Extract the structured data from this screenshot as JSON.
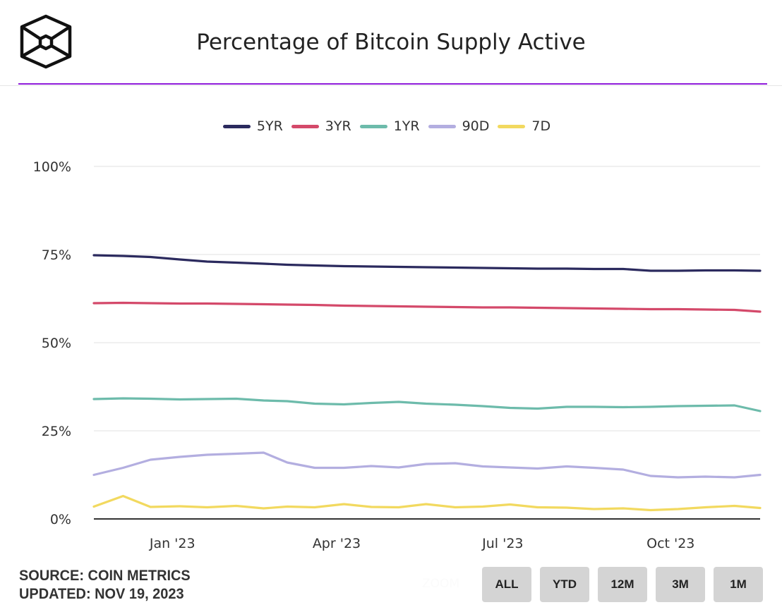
{
  "header": {
    "title": "Percentage of Bitcoin Supply Active",
    "logo": "cube-logo",
    "accent_color": "#8e1bd9"
  },
  "footer": {
    "source": "SOURCE: COIN METRICS",
    "updated": "UPDATED: NOV 19, 2023",
    "zoom_label": "ZOOM",
    "range_buttons": [
      "ALL",
      "YTD",
      "12M",
      "3M",
      "1M"
    ]
  },
  "chart_data": {
    "type": "line",
    "title": "Percentage of Bitcoin Supply Active",
    "xlabel": "",
    "ylabel": "",
    "ylim": [
      0,
      100
    ],
    "yticks": [
      "0%",
      "25%",
      "50%",
      "75%",
      "100%"
    ],
    "ytick_values": [
      0,
      25,
      50,
      75,
      100
    ],
    "xticks": [
      "Jan '23",
      "Apr '23",
      "Jul '23",
      "Oct '23"
    ],
    "xtick_dates": [
      "2023-01-01",
      "2023-04-01",
      "2023-07-01",
      "2023-10-01"
    ],
    "xlim": [
      "2022-11-19",
      "2023-11-19"
    ],
    "grid": true,
    "legend_position": "top-center",
    "x": [
      "2022-11-19",
      "2022-12-05",
      "2022-12-20",
      "2023-01-05",
      "2023-01-20",
      "2023-02-05",
      "2023-02-20",
      "2023-03-05",
      "2023-03-20",
      "2023-04-05",
      "2023-04-20",
      "2023-05-05",
      "2023-05-20",
      "2023-06-05",
      "2023-06-20",
      "2023-07-05",
      "2023-07-20",
      "2023-08-05",
      "2023-08-20",
      "2023-09-05",
      "2023-09-20",
      "2023-10-05",
      "2023-10-20",
      "2023-11-05",
      "2023-11-19"
    ],
    "series": [
      {
        "name": "5YR",
        "color": "#2b2a5e",
        "values": [
          74.8,
          74.6,
          74.3,
          73.6,
          73.0,
          72.7,
          72.4,
          72.1,
          71.9,
          71.7,
          71.6,
          71.5,
          71.4,
          71.3,
          71.2,
          71.1,
          71.0,
          71.0,
          70.9,
          70.9,
          70.4,
          70.4,
          70.5,
          70.5,
          70.4
        ]
      },
      {
        "name": "3YR",
        "color": "#d4496a",
        "values": [
          61.2,
          61.3,
          61.2,
          61.1,
          61.1,
          61.0,
          60.9,
          60.8,
          60.7,
          60.5,
          60.4,
          60.3,
          60.2,
          60.1,
          60.0,
          60.0,
          59.9,
          59.8,
          59.7,
          59.6,
          59.5,
          59.5,
          59.4,
          59.3,
          58.8
        ]
      },
      {
        "name": "1YR",
        "color": "#6dbbab",
        "values": [
          34.0,
          34.2,
          34.1,
          33.9,
          34.0,
          34.1,
          33.6,
          33.4,
          32.7,
          32.5,
          32.9,
          33.2,
          32.7,
          32.4,
          32.0,
          31.5,
          31.3,
          31.8,
          31.8,
          31.7,
          31.8,
          32.0,
          32.1,
          32.2,
          30.6
        ]
      },
      {
        "name": "90D",
        "color": "#b3aee0",
        "values": [
          12.5,
          14.5,
          16.8,
          17.6,
          18.2,
          18.5,
          18.8,
          16.0,
          14.5,
          14.5,
          15.0,
          14.6,
          15.6,
          15.8,
          14.9,
          14.6,
          14.3,
          14.9,
          14.5,
          14.0,
          12.2,
          11.8,
          12.0,
          11.8,
          12.5
        ]
      },
      {
        "name": "7D",
        "color": "#f2d95f",
        "values": [
          3.5,
          6.5,
          3.4,
          3.6,
          3.3,
          3.7,
          3.0,
          3.5,
          3.3,
          4.2,
          3.4,
          3.3,
          4.2,
          3.3,
          3.5,
          4.1,
          3.3,
          3.2,
          2.8,
          3.0,
          2.5,
          2.8,
          3.3,
          3.7,
          3.1
        ]
      }
    ]
  }
}
